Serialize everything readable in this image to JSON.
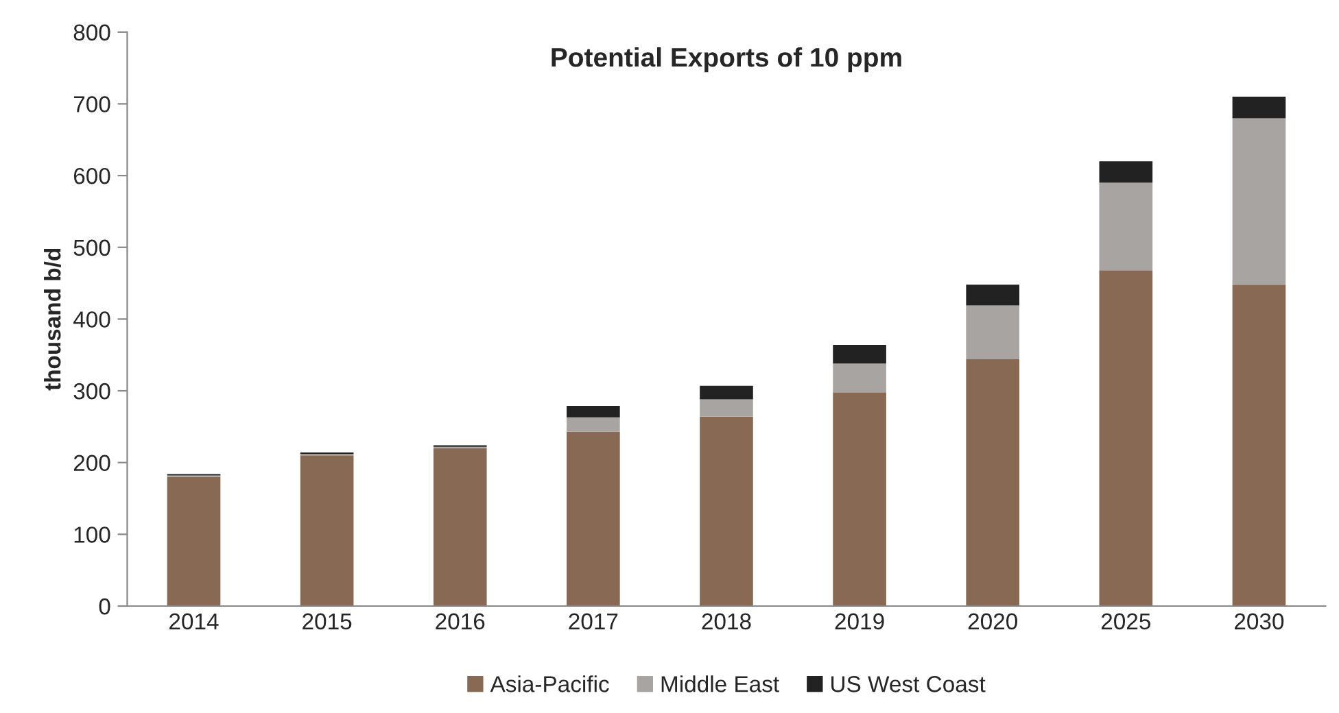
{
  "chart_data": {
    "type": "bar",
    "title": "Potential Exports of 10 ppm",
    "ylabel": "thousand b/d",
    "categories": [
      "2014",
      "2015",
      "2016",
      "2017",
      "2018",
      "2019",
      "2020",
      "2025",
      "2030"
    ],
    "stacked": true,
    "series": [
      {
        "name": "Asia-Pacific",
        "color": "#876954",
        "values": [
          180,
          210,
          220,
          243,
          264,
          298,
          344,
          468,
          448
        ]
      },
      {
        "name": "Middle East",
        "color": "#a8a4a2",
        "values": [
          2,
          2,
          2,
          20,
          24,
          40,
          75,
          122,
          232
        ]
      },
      {
        "name": "US West Coast",
        "color": "#222222",
        "values": [
          2,
          2,
          2,
          16,
          19,
          26,
          29,
          30,
          30
        ]
      }
    ],
    "ylim": [
      0,
      800
    ],
    "yticks": [
      0,
      100,
      200,
      300,
      400,
      500,
      600,
      700,
      800
    ],
    "grid": false,
    "legend": "bottom"
  }
}
